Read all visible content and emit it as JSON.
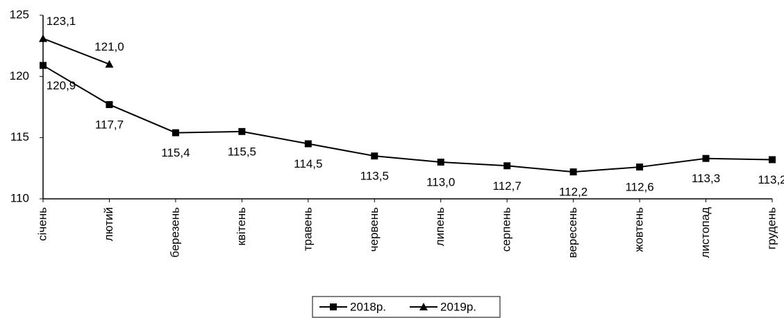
{
  "chart_data": {
    "type": "line",
    "categories": [
      "січень",
      "лютий",
      "березень",
      "квітень",
      "травень",
      "червень",
      "липень",
      "серпень",
      "вересень",
      "жовтень",
      "листопад",
      "грудень"
    ],
    "series": [
      {
        "name": "2018р.",
        "color": "#000000",
        "marker": "square",
        "values": [
          120.9,
          117.7,
          115.4,
          115.5,
          114.5,
          113.5,
          113.0,
          112.7,
          112.2,
          112.6,
          113.3,
          113.2
        ],
        "value_labels": [
          "120,9",
          "117,7",
          "115,4",
          "115,5",
          "114,5",
          "113,5",
          "113,0",
          "112,7",
          "112,2",
          "112,6",
          "113,3",
          "113,2"
        ]
      },
      {
        "name": "2019р.",
        "color": "#000000",
        "marker": "triangle",
        "values": [
          123.1,
          121.0,
          null,
          null,
          null,
          null,
          null,
          null,
          null,
          null,
          null,
          null
        ],
        "value_labels": [
          "123,1",
          "121,0",
          null,
          null,
          null,
          null,
          null,
          null,
          null,
          null,
          null,
          null
        ]
      }
    ],
    "ylim": [
      110,
      125
    ],
    "yticks": [
      110,
      115,
      120,
      125
    ],
    "grid": false
  }
}
